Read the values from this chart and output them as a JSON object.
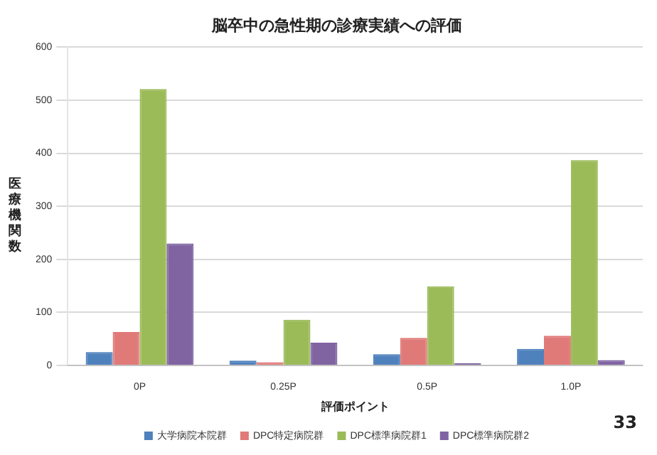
{
  "chart_data": {
    "type": "bar",
    "title": "脳卒中の急性期の診療実績への評価",
    "xlabel": "評価ポイント",
    "ylabel": "医療機関数",
    "categories": [
      "0P",
      "0.25P",
      "0.5P",
      "1.0P"
    ],
    "series": [
      {
        "name": "大学病院本院群",
        "color": "#4f81bd",
        "values": [
          25,
          9,
          21,
          31
        ]
      },
      {
        "name": "DPC特定病院群",
        "color": "#e07a78",
        "values": [
          63,
          6,
          52,
          56
        ]
      },
      {
        "name": "DPC標準病院群1",
        "color": "#9bbb59",
        "values": [
          521,
          86,
          149,
          387
        ]
      },
      {
        "name": "DPC標準病院群2",
        "color": "#8064a2",
        "values": [
          230,
          43,
          4,
          10
        ]
      }
    ],
    "ylim": [
      0,
      600
    ],
    "yticks": [
      0,
      100,
      200,
      300,
      400,
      500,
      600
    ],
    "grid": "y",
    "legend": "bottom",
    "annotations": [
      "33"
    ]
  }
}
